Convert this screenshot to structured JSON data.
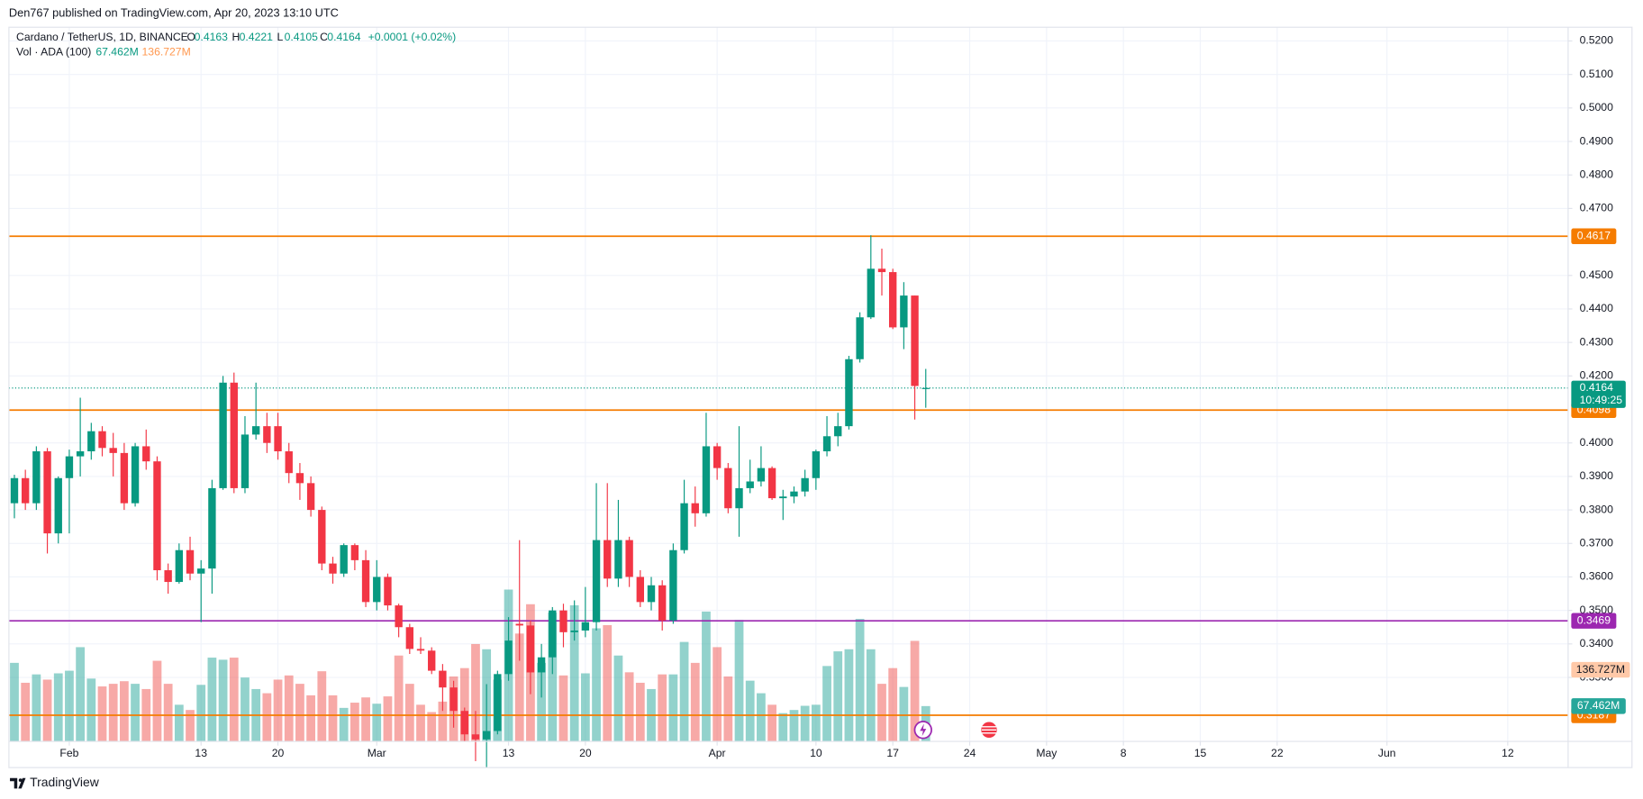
{
  "header": {
    "publisher": "Den767 published on TradingView.com, Apr 20, 2023 13:10 UTC",
    "footer": "TradingView"
  },
  "chart_data": {
    "type": "candlestick",
    "title": "Cardano / TetherUS, 1D, BINANCE",
    "legend": [
      "O",
      "H",
      "L",
      "C"
    ],
    "change": "+0.0001 (+0.02%)",
    "volume_title": "Vol · ADA (100)",
    "x": [
      "Jan 27",
      "Jan 28",
      "Jan 29",
      "Jan 30",
      "Jan 31",
      "Feb 1",
      "Feb 2",
      "Feb 3",
      "Feb 4",
      "Feb 5",
      "Feb 6",
      "Feb 7",
      "Feb 8",
      "Feb 9",
      "Feb 10",
      "Feb 11",
      "Feb 12",
      "Feb 13",
      "Feb 14",
      "Feb 15",
      "Feb 16",
      "Feb 17",
      "Feb 18",
      "Feb 19",
      "Feb 20",
      "Feb 21",
      "Feb 22",
      "Feb 23",
      "Feb 24",
      "Feb 25",
      "Feb 26",
      "Feb 27",
      "Feb 28",
      "Mar 1",
      "Mar 2",
      "Mar 3",
      "Mar 4",
      "Mar 5",
      "Mar 6",
      "Mar 7",
      "Mar 8",
      "Mar 9",
      "Mar 10",
      "Mar 11",
      "Mar 12",
      "Mar 13",
      "Mar 14",
      "Mar 15",
      "Mar 16",
      "Mar 17",
      "Mar 18",
      "Mar 19",
      "Mar 20",
      "Mar 21",
      "Mar 22",
      "Mar 23",
      "Mar 24",
      "Mar 25",
      "Mar 26",
      "Mar 27",
      "Mar 28",
      "Mar 29",
      "Mar 30",
      "Mar 31",
      "Apr 1",
      "Apr 2",
      "Apr 3",
      "Apr 4",
      "Apr 5",
      "Apr 6",
      "Apr 7",
      "Apr 8",
      "Apr 9",
      "Apr 10",
      "Apr 11",
      "Apr 12",
      "Apr 13",
      "Apr 14",
      "Apr 15",
      "Apr 16",
      "Apr 17",
      "Apr 18",
      "Apr 19",
      "Apr 20"
    ],
    "open": [
      0.382,
      0.3895,
      0.382,
      0.3975,
      0.373,
      0.3895,
      0.396,
      0.3975,
      0.4035,
      0.3985,
      0.397,
      0.382,
      0.399,
      0.3945,
      0.362,
      0.3585,
      0.368,
      0.361,
      0.3625,
      0.3865,
      0.418,
      0.3865,
      0.4025,
      0.405,
      0.405,
      0.3975,
      0.391,
      0.388,
      0.38,
      0.364,
      0.361,
      0.3695,
      0.365,
      0.3525,
      0.36,
      0.3515,
      0.345,
      0.3385,
      0.338,
      0.332,
      0.327,
      0.32,
      0.313,
      0.3115,
      0.314,
      0.331,
      0.346,
      0.3455,
      0.3315,
      0.336,
      0.35,
      0.3435,
      0.344,
      0.3465,
      0.371,
      0.3595,
      0.371,
      0.36,
      0.3525,
      0.3575,
      0.347,
      0.368,
      0.382,
      0.379,
      0.399,
      0.3925,
      0.3805,
      0.3865,
      0.3885,
      0.3925,
      0.3835,
      0.384,
      0.3855,
      0.3895,
      0.3975,
      0.402,
      0.405,
      0.425,
      0.4375,
      0.452,
      0.451,
      0.4345,
      0.444,
      0.4163
    ],
    "high": [
      0.3905,
      0.392,
      0.399,
      0.3985,
      0.39,
      0.398,
      0.4135,
      0.406,
      0.405,
      0.403,
      0.4,
      0.4,
      0.404,
      0.396,
      0.364,
      0.37,
      0.372,
      0.365,
      0.389,
      0.42,
      0.421,
      0.408,
      0.418,
      0.409,
      0.409,
      0.4,
      0.394,
      0.39,
      0.381,
      0.366,
      0.37,
      0.37,
      0.368,
      0.365,
      0.361,
      0.352,
      0.346,
      0.342,
      0.339,
      0.334,
      0.329,
      0.321,
      0.32,
      0.328,
      0.332,
      0.348,
      0.371,
      0.347,
      0.34,
      0.351,
      0.352,
      0.353,
      0.357,
      0.388,
      0.388,
      0.383,
      0.372,
      0.362,
      0.36,
      0.359,
      0.37,
      0.389,
      0.387,
      0.409,
      0.4,
      0.394,
      0.405,
      0.395,
      0.399,
      0.393,
      0.386,
      0.387,
      0.392,
      0.398,
      0.408,
      0.409,
      0.426,
      0.439,
      0.462,
      0.458,
      0.452,
      0.448,
      0.444,
      0.4221
    ],
    "low": [
      0.3775,
      0.38,
      0.38,
      0.367,
      0.37,
      0.373,
      0.39,
      0.395,
      0.396,
      0.39,
      0.38,
      0.381,
      0.392,
      0.359,
      0.355,
      0.358,
      0.359,
      0.3465,
      0.355,
      0.386,
      0.385,
      0.385,
      0.401,
      0.397,
      0.395,
      0.388,
      0.383,
      0.378,
      0.362,
      0.358,
      0.36,
      0.362,
      0.351,
      0.35,
      0.35,
      0.342,
      0.337,
      0.337,
      0.331,
      0.32,
      0.315,
      0.311,
      0.305,
      0.303,
      0.313,
      0.329,
      0.335,
      0.325,
      0.324,
      0.331,
      0.339,
      0.341,
      0.342,
      0.344,
      0.357,
      0.357,
      0.357,
      0.351,
      0.35,
      0.344,
      0.346,
      0.367,
      0.375,
      0.378,
      0.389,
      0.379,
      0.372,
      0.385,
      0.387,
      0.383,
      0.377,
      0.382,
      0.384,
      0.386,
      0.396,
      0.399,
      0.404,
      0.424,
      0.437,
      0.444,
      0.434,
      0.428,
      0.407,
      0.4105
    ],
    "close": [
      0.3895,
      0.382,
      0.3975,
      0.373,
      0.3895,
      0.396,
      0.3975,
      0.4035,
      0.3985,
      0.397,
      0.382,
      0.399,
      0.3945,
      0.362,
      0.3585,
      0.368,
      0.361,
      0.3625,
      0.3865,
      0.418,
      0.3865,
      0.4025,
      0.405,
      0.4,
      0.3975,
      0.391,
      0.388,
      0.38,
      0.364,
      0.361,
      0.3695,
      0.365,
      0.3525,
      0.36,
      0.3515,
      0.345,
      0.3385,
      0.338,
      0.332,
      0.327,
      0.32,
      0.313,
      0.3115,
      0.314,
      0.331,
      0.341,
      0.3455,
      0.3315,
      0.336,
      0.35,
      0.3435,
      0.344,
      0.3465,
      0.371,
      0.3595,
      0.371,
      0.36,
      0.3525,
      0.3575,
      0.347,
      0.368,
      0.382,
      0.379,
      0.399,
      0.3925,
      0.3805,
      0.3865,
      0.3885,
      0.3925,
      0.3835,
      0.384,
      0.3855,
      0.3895,
      0.3975,
      0.402,
      0.405,
      0.425,
      0.4375,
      0.452,
      0.451,
      0.4345,
      0.444,
      0.417,
      0.4164
    ],
    "volume": [
      150,
      112,
      128,
      118,
      130,
      135,
      180,
      120,
      105,
      110,
      115,
      110,
      100,
      154,
      110,
      70,
      60,
      108,
      160,
      156,
      160,
      122,
      100,
      92,
      118,
      126,
      110,
      88,
      134,
      88,
      64,
      74,
      84,
      72,
      86,
      164,
      110,
      70,
      56,
      76,
      124,
      140,
      186,
      176,
      118,
      290,
      206,
      262,
      150,
      246,
      126,
      260,
      130,
      216,
      222,
      164,
      132,
      112,
      100,
      128,
      128,
      190,
      150,
      248,
      180,
      124,
      232,
      116,
      92,
      70,
      54,
      60,
      68,
      70,
      144,
      172,
      176,
      234,
      176,
      110,
      140,
      104,
      192,
      67.462
    ],
    "up_color": "#089981",
    "down_color": "#f23645",
    "xlim": [
      "Jan 27",
      "Jun 17"
    ],
    "xticks": [
      {
        "value": "Feb 1",
        "label": "Feb"
      },
      {
        "value": "Feb 13",
        "label": "13"
      },
      {
        "value": "Feb 20",
        "label": "20"
      },
      {
        "value": "Mar 1",
        "label": "Mar"
      },
      {
        "value": "Mar 13",
        "label": "13"
      },
      {
        "value": "Mar 20",
        "label": "20"
      },
      {
        "value": "Apr 1",
        "label": "Apr"
      },
      {
        "value": "Apr 10",
        "label": "10"
      },
      {
        "value": "Apr 17",
        "label": "17"
      },
      {
        "value": "Apr 24",
        "label": "24"
      },
      {
        "value": "May 1",
        "label": "May"
      },
      {
        "value": "May 8",
        "label": "8"
      },
      {
        "value": "May 15",
        "label": "15"
      },
      {
        "value": "May 22",
        "label": "22"
      },
      {
        "value": "Jun 1",
        "label": "Jun"
      },
      {
        "value": "Jun 12",
        "label": "12"
      }
    ],
    "ylim": [
      0.3109,
      0.5241
    ],
    "yticks": [
      {
        "value": 0.52,
        "label": "0.5200"
      },
      {
        "value": 0.51,
        "label": "0.5100"
      },
      {
        "value": 0.5,
        "label": "0.5000"
      },
      {
        "value": 0.49,
        "label": "0.4900"
      },
      {
        "value": 0.48,
        "label": "0.4800"
      },
      {
        "value": 0.47,
        "label": "0.4700"
      },
      {
        "value": 0.45,
        "label": "0.4500"
      },
      {
        "value": 0.44,
        "label": "0.4400"
      },
      {
        "value": 0.43,
        "label": "0.4300"
      },
      {
        "value": 0.42,
        "label": "0.4200"
      },
      {
        "value": 0.4,
        "label": "0.4000"
      },
      {
        "value": 0.39,
        "label": "0.3900"
      },
      {
        "value": 0.38,
        "label": "0.3800"
      },
      {
        "value": 0.37,
        "label": "0.3700"
      },
      {
        "value": 0.36,
        "label": "0.3600"
      },
      {
        "value": 0.35,
        "label": "0.3500"
      },
      {
        "value": 0.34,
        "label": "0.3400"
      },
      {
        "value": 0.33,
        "label": "0.3300"
      }
    ],
    "vlim": [
      0,
      300
    ],
    "hlines": [
      {
        "value": 0.4617,
        "color": "#f57c00"
      },
      {
        "value": 0.4098,
        "color": "#f57c00"
      },
      {
        "value": 0.3469,
        "color": "#9c27b0"
      },
      {
        "value": 0.3187,
        "color": "#f57c00"
      }
    ],
    "countdown": "10:49:25",
    "volume_ma": {
      "value": 136.727,
      "label": "136.727M",
      "color": "#ff9850"
    },
    "volume_last": {
      "value": 67.462,
      "label": "67.462M"
    },
    "grid": true
  }
}
